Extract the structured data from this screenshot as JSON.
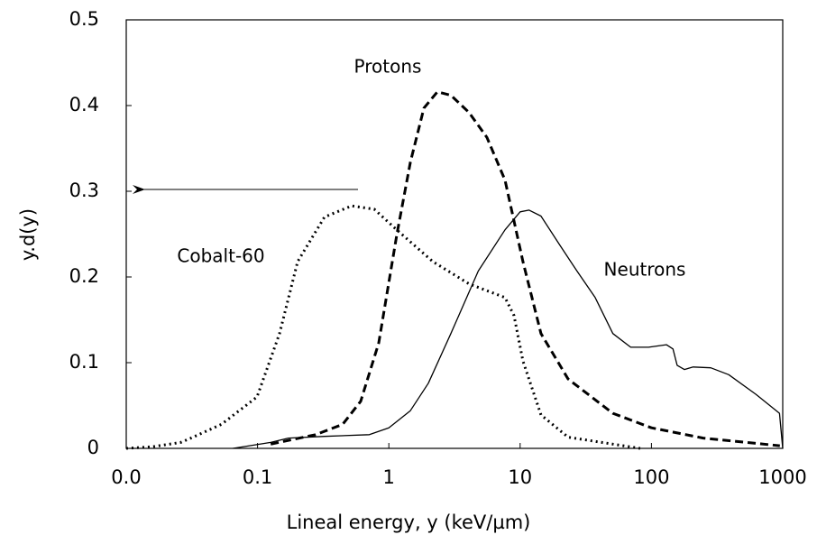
{
  "chart_data": {
    "type": "line",
    "xlabel": "Lineal energy, y (keV/µm)",
    "ylabel": "y.d(y)",
    "xscale": "log",
    "xlim": [
      0.01,
      1000
    ],
    "ylim": [
      0,
      0.5
    ],
    "xticks": [
      {
        "value": 0.01,
        "label": "0.0"
      },
      0.1,
      1,
      10,
      100,
      1000
    ],
    "yticks": [
      0,
      0.1,
      0.2,
      0.3,
      0.4,
      0.5
    ],
    "grid": false,
    "series": [
      {
        "name": "Cobalt-60",
        "color": "#000000",
        "style": "dotted",
        "x": [
          0.01,
          0.016,
          0.026,
          0.03,
          0.053,
          0.099,
          0.147,
          0.202,
          0.324,
          0.521,
          0.774,
          1.15,
          2.16,
          4.07,
          7.67,
          8.98,
          10.5,
          14.4,
          23.2,
          82
        ],
        "values": [
          0,
          0.002,
          0.007,
          0.011,
          0.028,
          0.06,
          0.134,
          0.218,
          0.27,
          0.283,
          0.279,
          0.255,
          0.218,
          0.192,
          0.176,
          0.155,
          0.102,
          0.039,
          0.013,
          0
        ]
      },
      {
        "name": "Protons",
        "color": "#000000",
        "style": "dashed",
        "x": [
          0.126,
          0.277,
          0.445,
          0.611,
          0.838,
          1.15,
          1.46,
          1.85,
          2.34,
          2.97,
          4.07,
          5.58,
          7.67,
          10.5,
          14.4,
          23.2,
          50.8,
          100,
          248,
          950
        ],
        "values": [
          0.005,
          0.016,
          0.028,
          0.055,
          0.123,
          0.249,
          0.334,
          0.397,
          0.416,
          0.412,
          0.392,
          0.363,
          0.313,
          0.218,
          0.134,
          0.081,
          0.041,
          0.024,
          0.012,
          0.003
        ]
      },
      {
        "name": "Neutrons",
        "color": "#000000",
        "style": "solid",
        "x": [
          0.065,
          0.126,
          0.172,
          0.324,
          0.711,
          1,
          1.46,
          2.0,
          2.97,
          4.8,
          7.67,
          10,
          11.7,
          14.4,
          19.7,
          27.1,
          37.3,
          50.8,
          69.5,
          95,
          130,
          146,
          157,
          178,
          208,
          283,
          388,
          625,
          944,
          1000
        ],
        "values": [
          0,
          0.007,
          0.012,
          0.014,
          0.016,
          0.024,
          0.044,
          0.076,
          0.134,
          0.207,
          0.255,
          0.276,
          0.278,
          0.271,
          0.239,
          0.207,
          0.176,
          0.134,
          0.118,
          0.118,
          0.121,
          0.116,
          0.097,
          0.092,
          0.095,
          0.094,
          0.086,
          0.063,
          0.041,
          0
        ]
      }
    ]
  }
}
